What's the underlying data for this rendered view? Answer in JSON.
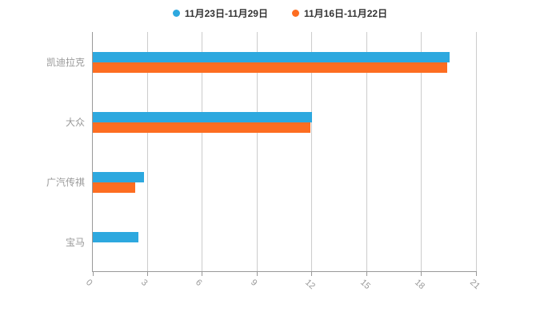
{
  "chart_data": {
    "type": "bar",
    "orientation": "horizontal",
    "title": "",
    "xlabel": "",
    "ylabel": "",
    "categories": [
      "凯迪拉克",
      "大众",
      "广汽传祺",
      "宝马"
    ],
    "series": [
      {
        "name": "11月23日-11月29日",
        "color": "#2DA8DF",
        "values": [
          19.5,
          12.0,
          2.8,
          2.5
        ]
      },
      {
        "name": "11月16日-11月22日",
        "color": "#FD6D21",
        "values": [
          19.4,
          11.9,
          2.3,
          0
        ]
      }
    ],
    "xlim": [
      0,
      21
    ],
    "xticks": [
      0,
      3,
      6,
      9,
      12,
      15,
      18,
      21
    ],
    "grid": true,
    "legend_position": "top",
    "colors": {
      "grid": "#cccccc",
      "axis": "#999999",
      "label": "#999999",
      "legend_text": "#333333",
      "background": "#ffffff"
    }
  }
}
